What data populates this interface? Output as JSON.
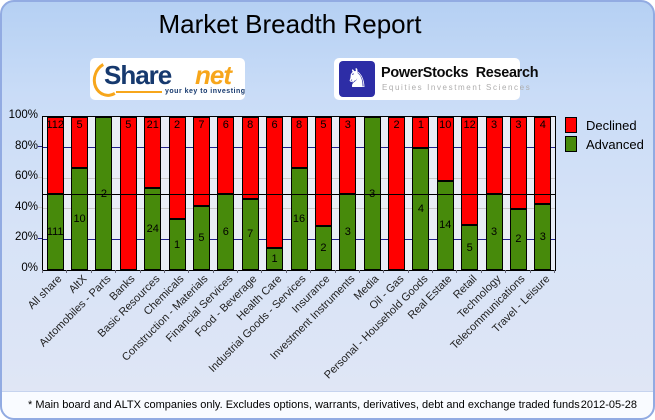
{
  "title": "Market Breadth Report",
  "logos": {
    "sharenet": {
      "brand_share": "Share",
      "brand_net": "net",
      "tagline": "your key to investing",
      "brand_navy": "#16396e",
      "brand_orange": "#f7a61b"
    },
    "powerstocks": {
      "name": "PowerStocks  Research",
      "subtitle": "Equities Investment Sciences",
      "knight_glyph": "♞",
      "square_color": "#2d2da6"
    }
  },
  "chart_data": {
    "type": "bar",
    "variant": "stacked-percent-column",
    "title": "Market Breadth Report",
    "categories": [
      "All share",
      "AltX",
      "Automobiles - Parts",
      "Banks",
      "Basic Resources",
      "Chemicals",
      "Construction - Materials",
      "Financial Services",
      "Food - Beverage",
      "Health Care",
      "Industrial Goods - Services",
      "Insurance",
      "Investment Instruments",
      "Media",
      "Oil - Gas",
      "Personal - Household Goods",
      "Real Estate",
      "Retail",
      "Technology",
      "Telecommunications",
      "Travel - Leisure"
    ],
    "series": [
      {
        "name": "Declined",
        "color": "#ff0000",
        "values": [
          112,
          5,
          0,
          5,
          21,
          2,
          7,
          6,
          8,
          6,
          8,
          5,
          3,
          0,
          2,
          1,
          10,
          12,
          3,
          3,
          4
        ]
      },
      {
        "name": "Advanced",
        "color": "#478a0b",
        "values": [
          111,
          10,
          2,
          0,
          24,
          1,
          5,
          6,
          7,
          1,
          16,
          2,
          3,
          3,
          0,
          4,
          14,
          5,
          3,
          2,
          3
        ]
      }
    ],
    "y_axis": {
      "min": 0,
      "max": 100,
      "tick_step": 20,
      "tick_labels": [
        "100%",
        "80%",
        "60%",
        "40%",
        "20%",
        "0%"
      ],
      "unit": "%"
    },
    "reference_line_pct": 50,
    "gridlines": [
      {
        "pct": 80,
        "color": "#22228c"
      },
      {
        "pct": 60,
        "color": "#c9c9c9"
      },
      {
        "pct": 40,
        "color": "#c9c9c9"
      },
      {
        "pct": 20,
        "color": "#22228c"
      }
    ],
    "legend_position": "top-right",
    "plot_background": "#e9edf6",
    "bar_labels": "counts shown on segments; declined at bar top, advanced centered in segment"
  },
  "footer": {
    "note": "* Main board and ALTX companies only. Excludes options, warrants, derivatives, debt and exchange traded funds",
    "date": "2012-05-28"
  }
}
